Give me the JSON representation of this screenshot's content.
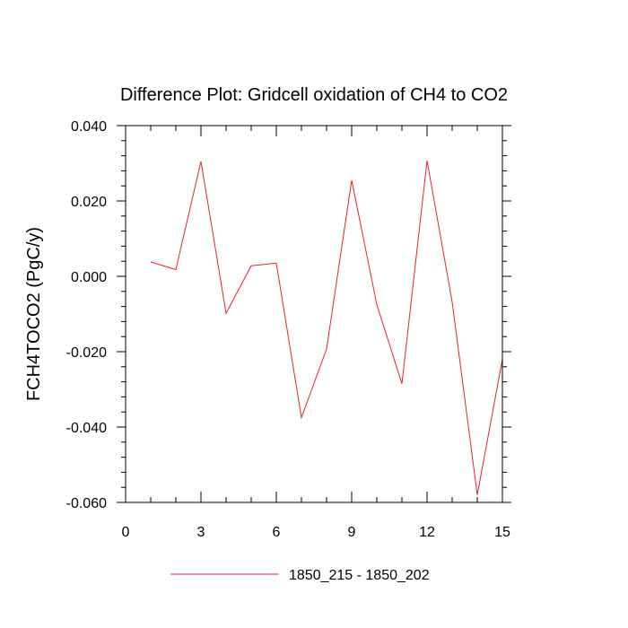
{
  "chart_data": {
    "type": "line",
    "title": "Difference Plot: Gridcell oxidation of CH4 to CO2",
    "xlabel": "",
    "ylabel": "FCH4TOCO2  (PgC/y)",
    "xlim": [
      0,
      15
    ],
    "ylim": [
      -0.06,
      0.04
    ],
    "x_ticks": [
      0,
      3,
      6,
      9,
      12,
      15
    ],
    "x_tick_labels": [
      "0",
      "3",
      "6",
      "9",
      "12",
      "15"
    ],
    "y_ticks": [
      0.04,
      0.02,
      0.0,
      -0.02,
      -0.04,
      -0.06
    ],
    "y_tick_labels": [
      "0.040",
      "0.020",
      "0.000",
      "-0.020",
      "-0.040",
      "-0.060"
    ],
    "legend_position": "bottom-center",
    "series": [
      {
        "name": "1850_215 - 1850_202",
        "color": "#e8202a",
        "x": [
          1,
          2,
          3,
          4,
          5,
          6,
          7,
          8,
          9,
          10,
          11,
          12,
          13,
          14,
          15
        ],
        "values": [
          0.0038,
          0.0018,
          0.0305,
          -0.0098,
          0.0028,
          0.0035,
          -0.0375,
          -0.0193,
          0.0255,
          -0.0075,
          -0.0285,
          0.0307,
          -0.0068,
          -0.058,
          -0.022
        ]
      }
    ]
  }
}
